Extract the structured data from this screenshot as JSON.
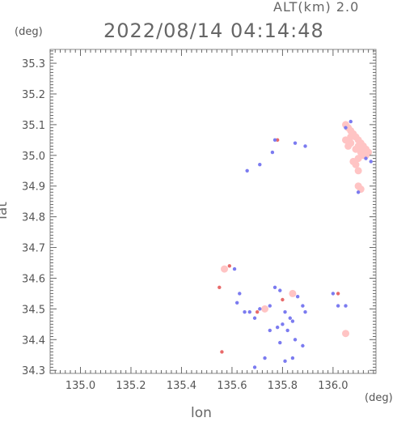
{
  "header": {
    "alt_label": "ALT(km) 2.0",
    "timestamp": "2022/08/14 04:14:48",
    "y_unit": "(deg)",
    "x_unit": "(deg)"
  },
  "chart_data": {
    "type": "scatter",
    "title": "2022/08/14 04:14:48",
    "xlabel": "lon",
    "ylabel": "lat",
    "xlim": [
      134.88,
      136.17
    ],
    "ylim": [
      34.29,
      35.345
    ],
    "x_ticks": [
      135.0,
      135.2,
      135.4,
      135.6,
      135.8,
      136.0
    ],
    "x_tick_labels": [
      "135.0",
      "135.2",
      "135.4",
      "135.6",
      "135.8",
      "136.0"
    ],
    "y_ticks": [
      34.3,
      34.4,
      34.5,
      34.6,
      34.7,
      34.8,
      34.9,
      35.0,
      35.1,
      35.2,
      35.3
    ],
    "y_tick_labels": [
      "34.3",
      "34.4",
      "34.5",
      "34.6",
      "34.7",
      "34.8",
      "34.9",
      "35.0",
      "35.1",
      "35.2",
      "35.3"
    ],
    "grid": false,
    "colors": {
      "positive": "#ffc4c4",
      "strong_positive": "#e86a6a",
      "negative": "#7b7bf0"
    },
    "series": [
      {
        "kind": "positive",
        "points": [
          [
            136.05,
            35.1
          ],
          [
            136.06,
            35.09
          ],
          [
            136.07,
            35.08
          ],
          [
            136.08,
            35.07
          ],
          [
            136.09,
            35.06
          ],
          [
            136.1,
            35.05
          ],
          [
            136.11,
            35.04
          ],
          [
            136.12,
            35.03
          ],
          [
            136.13,
            35.02
          ],
          [
            136.14,
            35.01
          ],
          [
            136.12,
            35.0
          ],
          [
            136.1,
            34.99
          ],
          [
            136.08,
            34.98
          ],
          [
            136.06,
            35.03
          ],
          [
            136.05,
            35.05
          ],
          [
            136.07,
            35.04
          ],
          [
            136.09,
            35.02
          ],
          [
            136.1,
            35.03
          ],
          [
            136.11,
            35.01
          ],
          [
            136.13,
            35.0
          ],
          [
            136.09,
            34.97
          ],
          [
            136.1,
            34.95
          ],
          [
            136.07,
            35.06
          ],
          [
            136.1,
            34.9
          ],
          [
            136.11,
            34.89
          ],
          [
            136.05,
            34.42
          ],
          [
            135.57,
            34.63
          ],
          [
            135.84,
            34.55
          ],
          [
            135.73,
            34.5
          ]
        ]
      },
      {
        "kind": "strong_positive",
        "points": [
          [
            135.59,
            34.64
          ],
          [
            135.55,
            34.57
          ],
          [
            135.78,
            35.05
          ],
          [
            135.56,
            34.36
          ],
          [
            136.02,
            34.55
          ],
          [
            135.7,
            34.49
          ],
          [
            135.8,
            34.53
          ]
        ]
      },
      {
        "kind": "negative",
        "points": [
          [
            136.07,
            35.11
          ],
          [
            136.05,
            35.09
          ],
          [
            136.13,
            34.99
          ],
          [
            136.15,
            34.98
          ],
          [
            136.1,
            34.88
          ],
          [
            135.77,
            35.05
          ],
          [
            135.85,
            35.04
          ],
          [
            135.89,
            35.03
          ],
          [
            135.71,
            34.97
          ],
          [
            135.66,
            34.95
          ],
          [
            135.76,
            35.01
          ],
          [
            135.61,
            34.63
          ],
          [
            135.63,
            34.55
          ],
          [
            135.62,
            34.52
          ],
          [
            135.65,
            34.49
          ],
          [
            135.67,
            34.49
          ],
          [
            135.69,
            34.47
          ],
          [
            135.71,
            34.5
          ],
          [
            135.75,
            34.51
          ],
          [
            135.77,
            34.57
          ],
          [
            135.79,
            34.56
          ],
          [
            135.81,
            34.49
          ],
          [
            135.83,
            34.47
          ],
          [
            135.84,
            34.46
          ],
          [
            135.82,
            34.43
          ],
          [
            135.8,
            34.45
          ],
          [
            135.78,
            34.44
          ],
          [
            135.85,
            34.4
          ],
          [
            135.88,
            34.38
          ],
          [
            135.84,
            34.34
          ],
          [
            135.81,
            34.33
          ],
          [
            135.73,
            34.34
          ],
          [
            135.69,
            34.31
          ],
          [
            135.86,
            34.54
          ],
          [
            135.88,
            34.51
          ],
          [
            135.89,
            34.49
          ],
          [
            136.0,
            34.55
          ],
          [
            136.02,
            34.51
          ],
          [
            136.05,
            34.51
          ],
          [
            135.75,
            34.43
          ],
          [
            135.79,
            34.39
          ]
        ]
      }
    ]
  }
}
